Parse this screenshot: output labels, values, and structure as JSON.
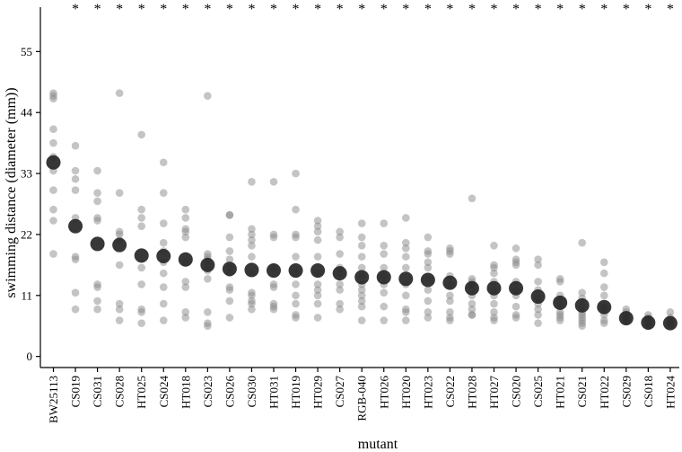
{
  "chart_data": {
    "type": "scatter",
    "xlabel": "mutant",
    "ylabel": "swimming distance (diameter (mm))",
    "ylim": [
      -2,
      63
    ],
    "yticks": [
      0,
      11,
      22,
      33,
      44,
      55
    ],
    "grid": false,
    "significance_marker": "*",
    "categories": [
      "BW25113",
      "CS019",
      "CS031",
      "CS028",
      "HT025",
      "CS024",
      "HT018",
      "CS023",
      "CS026",
      "CS030",
      "HT031",
      "HT019",
      "HT029",
      "CS027",
      "RGB-040",
      "HT026",
      "HT020",
      "HT023",
      "CS022",
      "HT028",
      "HT027",
      "CS020",
      "CS025",
      "HT021",
      "CS021",
      "HT022",
      "CS029",
      "CS018",
      "HT024"
    ],
    "significant": [
      false,
      true,
      true,
      true,
      true,
      true,
      true,
      true,
      true,
      true,
      true,
      true,
      true,
      true,
      true,
      true,
      true,
      true,
      true,
      true,
      true,
      true,
      true,
      true,
      true,
      true,
      true,
      true,
      true
    ],
    "means": [
      35,
      23.5,
      20.3,
      20.1,
      18.2,
      18.1,
      17.5,
      16.5,
      15.8,
      15.6,
      15.5,
      15.5,
      15.5,
      15,
      14.3,
      14.3,
      14,
      13.8,
      13.3,
      12.3,
      12.3,
      12.3,
      10.8,
      9.7,
      9.2,
      8.9,
      6.9,
      6.1,
      6
    ],
    "replicates": [
      [
        47.5,
        47,
        46.5,
        41,
        38.5,
        36,
        33.5,
        30,
        26.5,
        24.5,
        18.5
      ],
      [
        38,
        33.5,
        32,
        30,
        25,
        18,
        17.5,
        11.5,
        8.5
      ],
      [
        33.5,
        29.5,
        28,
        25,
        24.5,
        13,
        12.5,
        10,
        8.5
      ],
      [
        47.5,
        29.5,
        22.5,
        22,
        21,
        16.5,
        9.5,
        8.5,
        6.5
      ],
      [
        40,
        26.5,
        25,
        23.5,
        16,
        13,
        8.5,
        8,
        6
      ],
      [
        35,
        29.5,
        24,
        20.5,
        19,
        17,
        15,
        12.5,
        9.5,
        6.5
      ],
      [
        26.5,
        25,
        23,
        22.5,
        21.5,
        17,
        13.5,
        12.5,
        8,
        7
      ],
      [
        47,
        18.5,
        18,
        17.5,
        16.5,
        15.5,
        14,
        8,
        6,
        5.5
      ],
      [
        25.5,
        25.5,
        21.5,
        19,
        17.5,
        16,
        15,
        12.5,
        12,
        10,
        7
      ],
      [
        31.5,
        23,
        22,
        21,
        20,
        18,
        15,
        11.5,
        11,
        10,
        9.5,
        8.5
      ],
      [
        31.5,
        22,
        21.5,
        16,
        13,
        12.5,
        9.5,
        9,
        8.5
      ],
      [
        33,
        26.5,
        22,
        21.5,
        18,
        15,
        13,
        11,
        9.5,
        7.5,
        7
      ],
      [
        24.5,
        23.5,
        22.5,
        21,
        18,
        15,
        13,
        12,
        11,
        9.5,
        7
      ],
      [
        22.5,
        21.5,
        18.5,
        16,
        15,
        13,
        12,
        9.5,
        8.5
      ],
      [
        24,
        21.5,
        20,
        18,
        16,
        14.5,
        13,
        12,
        11,
        10,
        9,
        6.5
      ],
      [
        24,
        20,
        18.5,
        16,
        14.5,
        13,
        11.5,
        9,
        6.5
      ],
      [
        25,
        20.5,
        19.5,
        18,
        16,
        13,
        11,
        8.5,
        8,
        6.5
      ],
      [
        21.5,
        19,
        18.5,
        17,
        16,
        14,
        12,
        10,
        8,
        7
      ],
      [
        19.5,
        19,
        18.5,
        14.5,
        13,
        11,
        10,
        8,
        7,
        6.5
      ],
      [
        28.5,
        14,
        13.5,
        13,
        12.5,
        11,
        9.5,
        8.5,
        7.5,
        7.5
      ],
      [
        20,
        16.5,
        16,
        15,
        13.5,
        12,
        11,
        9.5,
        8,
        7,
        6.5
      ],
      [
        19.5,
        17.5,
        17,
        16.5,
        13.5,
        12,
        11,
        9,
        7.5,
        7
      ],
      [
        17.5,
        16.5,
        13.5,
        12,
        10.5,
        9.5,
        8.5,
        7.5,
        6
      ],
      [
        14,
        13.5,
        11,
        10,
        9,
        8,
        7.5,
        7,
        6.5
      ],
      [
        20.5,
        11.5,
        10.5,
        9,
        8,
        7.5,
        7,
        6.5,
        6,
        5.5
      ],
      [
        17,
        15,
        12.5,
        11,
        9,
        8.5,
        7.5,
        6.5,
        6
      ],
      [
        8.5,
        8,
        7.5,
        7,
        6.5,
        6.5
      ],
      [
        7.5,
        7,
        6.5,
        6.5,
        6,
        5.5,
        5.5
      ],
      [
        8,
        7,
        6.5,
        6,
        6,
        5.5
      ]
    ]
  }
}
